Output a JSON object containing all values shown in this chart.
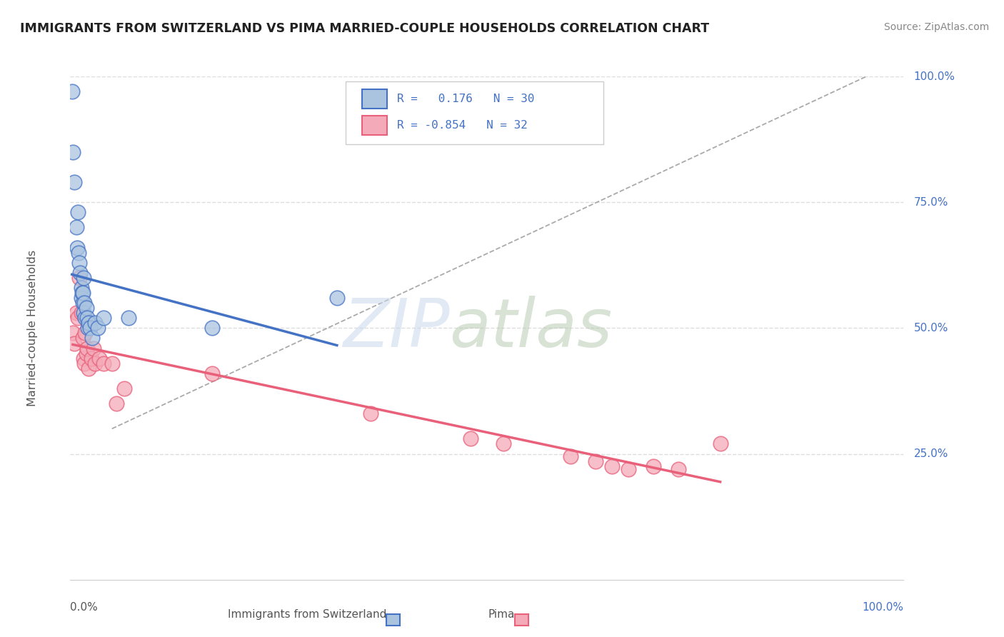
{
  "title": "IMMIGRANTS FROM SWITZERLAND VS PIMA MARRIED-COUPLE HOUSEHOLDS CORRELATION CHART",
  "source": "Source: ZipAtlas.com",
  "ylabel": "Married-couple Households",
  "xlim": [
    0,
    1
  ],
  "ylim": [
    0,
    1
  ],
  "yticks": [
    0.25,
    0.5,
    0.75,
    1.0
  ],
  "ytick_labels": [
    "25.0%",
    "50.0%",
    "75.0%",
    "100.0%"
  ],
  "blue_scatter_x": [
    0.002,
    0.003,
    0.005,
    0.007,
    0.008,
    0.009,
    0.01,
    0.011,
    0.012,
    0.013,
    0.013,
    0.014,
    0.015,
    0.015,
    0.016,
    0.016,
    0.017,
    0.018,
    0.019,
    0.02,
    0.021,
    0.022,
    0.024,
    0.026,
    0.03,
    0.033,
    0.04,
    0.07,
    0.17,
    0.32
  ],
  "blue_scatter_y": [
    0.97,
    0.85,
    0.79,
    0.7,
    0.66,
    0.73,
    0.65,
    0.63,
    0.61,
    0.58,
    0.56,
    0.57,
    0.55,
    0.57,
    0.53,
    0.6,
    0.55,
    0.52,
    0.54,
    0.52,
    0.5,
    0.51,
    0.5,
    0.48,
    0.51,
    0.5,
    0.52,
    0.52,
    0.5,
    0.56
  ],
  "pink_scatter_x": [
    0.003,
    0.005,
    0.007,
    0.009,
    0.011,
    0.013,
    0.015,
    0.016,
    0.017,
    0.018,
    0.019,
    0.02,
    0.022,
    0.025,
    0.028,
    0.03,
    0.035,
    0.04,
    0.05,
    0.055,
    0.065,
    0.17,
    0.36,
    0.48,
    0.52,
    0.6,
    0.63,
    0.65,
    0.67,
    0.7,
    0.73,
    0.78
  ],
  "pink_scatter_y": [
    0.49,
    0.47,
    0.53,
    0.52,
    0.6,
    0.53,
    0.48,
    0.44,
    0.43,
    0.49,
    0.45,
    0.46,
    0.42,
    0.44,
    0.46,
    0.43,
    0.44,
    0.43,
    0.43,
    0.35,
    0.38,
    0.41,
    0.33,
    0.28,
    0.27,
    0.245,
    0.235,
    0.225,
    0.22,
    0.225,
    0.22,
    0.27
  ],
  "blue_color": "#aac4e0",
  "blue_line_color": "#4472c4",
  "blue_edge_color": "#4472c4",
  "pink_color": "#f4aab8",
  "pink_line_color": "#e8607a",
  "pink_edge_color": "#e8607a",
  "gray_dash_color": "#aaaaaa",
  "background_color": "#ffffff",
  "grid_color": "#dddddd",
  "tick_label_color": "#4472c4",
  "title_color": "#222222",
  "source_color": "#888888",
  "ylabel_color": "#555555",
  "watermark_zip_color": "#c8d8ec",
  "watermark_atlas_color": "#b8ccb4"
}
